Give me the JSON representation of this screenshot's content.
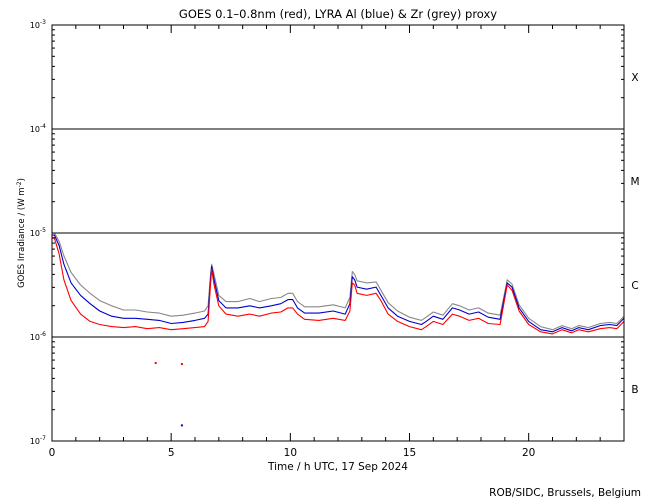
{
  "chart_data": {
    "type": "line",
    "title": "GOES 0.1–0.8nm (red), LYRA Al (blue) & Zr (grey) proxy",
    "xlabel": "Time / h UTC, 17 Sep 2024",
    "ylabel_main": "GOES Irradiance / (W m",
    "ylabel_sup": "-2",
    "ylabel_close": ")",
    "xlim": [
      0,
      24
    ],
    "ylim_log10": [
      -7,
      -3
    ],
    "yscale": "log",
    "x_ticks": [
      {
        "v": 0,
        "label": "0"
      },
      {
        "v": 5,
        "label": "5"
      },
      {
        "v": 10,
        "label": "10"
      },
      {
        "v": 15,
        "label": "15"
      },
      {
        "v": 20,
        "label": "20"
      }
    ],
    "y_ticks": [
      {
        "exp": -3,
        "base": "10",
        "sup": "-3"
      },
      {
        "exp": -4,
        "base": "10",
        "sup": "-4"
      },
      {
        "exp": -5,
        "base": "10",
        "sup": "-5"
      },
      {
        "exp": -6,
        "base": "10",
        "sup": "-6"
      },
      {
        "exp": -7,
        "base": "10",
        "sup": "-7"
      }
    ],
    "flare_class_lines_log10": [
      -4,
      -5,
      -6
    ],
    "flare_classes": [
      {
        "label": "X",
        "log10": -3.5
      },
      {
        "label": "M",
        "log10": -4.5
      },
      {
        "label": "C",
        "log10": -5.5
      },
      {
        "label": "B",
        "log10": -6.5
      }
    ],
    "series": [
      {
        "name": "GOES 0.1–0.8nm",
        "color": "#ff0000",
        "points": [
          [
            0,
            -5.05
          ],
          [
            0.1,
            -5.05
          ],
          [
            0.3,
            -5.2
          ],
          [
            0.5,
            -5.45
          ],
          [
            0.8,
            -5.65
          ],
          [
            1.2,
            -5.78
          ],
          [
            1.6,
            -5.85
          ],
          [
            2.0,
            -5.88
          ],
          [
            2.5,
            -5.9
          ],
          [
            3.0,
            -5.91
          ],
          [
            3.5,
            -5.9
          ],
          [
            4.0,
            -5.92
          ],
          [
            4.5,
            -5.91
          ],
          [
            5.0,
            -5.93
          ],
          [
            5.5,
            -5.92
          ],
          [
            6.0,
            -5.91
          ],
          [
            6.4,
            -5.9
          ],
          [
            6.55,
            -5.85
          ],
          [
            6.65,
            -5.5
          ],
          [
            6.7,
            -5.35
          ],
          [
            6.8,
            -5.5
          ],
          [
            7.0,
            -5.7
          ],
          [
            7.3,
            -5.78
          ],
          [
            7.8,
            -5.8
          ],
          [
            8.3,
            -5.78
          ],
          [
            8.7,
            -5.8
          ],
          [
            9.2,
            -5.77
          ],
          [
            9.6,
            -5.76
          ],
          [
            9.9,
            -5.72
          ],
          [
            10.1,
            -5.72
          ],
          [
            10.3,
            -5.78
          ],
          [
            10.6,
            -5.83
          ],
          [
            11.2,
            -5.84
          ],
          [
            11.8,
            -5.82
          ],
          [
            12.3,
            -5.84
          ],
          [
            12.5,
            -5.75
          ],
          [
            12.6,
            -5.48
          ],
          [
            12.7,
            -5.5
          ],
          [
            12.8,
            -5.58
          ],
          [
            13.2,
            -5.6
          ],
          [
            13.6,
            -5.58
          ],
          [
            13.8,
            -5.65
          ],
          [
            14.1,
            -5.78
          ],
          [
            14.5,
            -5.85
          ],
          [
            15.0,
            -5.9
          ],
          [
            15.5,
            -5.93
          ],
          [
            15.7,
            -5.9
          ],
          [
            16.0,
            -5.85
          ],
          [
            16.4,
            -5.88
          ],
          [
            16.8,
            -5.78
          ],
          [
            17.1,
            -5.8
          ],
          [
            17.5,
            -5.84
          ],
          [
            17.9,
            -5.82
          ],
          [
            18.3,
            -5.87
          ],
          [
            18.8,
            -5.88
          ],
          [
            19.1,
            -5.5
          ],
          [
            19.3,
            -5.55
          ],
          [
            19.6,
            -5.75
          ],
          [
            20.0,
            -5.88
          ],
          [
            20.5,
            -5.95
          ],
          [
            21.0,
            -5.97
          ],
          [
            21.4,
            -5.93
          ],
          [
            21.8,
            -5.96
          ],
          [
            22.1,
            -5.93
          ],
          [
            22.5,
            -5.95
          ],
          [
            23.0,
            -5.92
          ],
          [
            23.4,
            -5.91
          ],
          [
            23.7,
            -5.92
          ],
          [
            24.0,
            -5.85
          ]
        ]
      },
      {
        "name": "LYRA Al",
        "color": "#0000cc",
        "points": [
          [
            0,
            -5.02
          ],
          [
            0.1,
            -5.02
          ],
          [
            0.3,
            -5.12
          ],
          [
            0.5,
            -5.3
          ],
          [
            0.8,
            -5.48
          ],
          [
            1.2,
            -5.6
          ],
          [
            1.6,
            -5.68
          ],
          [
            2.0,
            -5.75
          ],
          [
            2.5,
            -5.8
          ],
          [
            3.0,
            -5.82
          ],
          [
            3.5,
            -5.82
          ],
          [
            4.0,
            -5.83
          ],
          [
            4.5,
            -5.84
          ],
          [
            5.0,
            -5.87
          ],
          [
            5.5,
            -5.86
          ],
          [
            6.0,
            -5.84
          ],
          [
            6.4,
            -5.82
          ],
          [
            6.55,
            -5.78
          ],
          [
            6.65,
            -5.45
          ],
          [
            6.7,
            -5.32
          ],
          [
            6.8,
            -5.45
          ],
          [
            7.0,
            -5.65
          ],
          [
            7.3,
            -5.72
          ],
          [
            7.8,
            -5.72
          ],
          [
            8.3,
            -5.7
          ],
          [
            8.7,
            -5.72
          ],
          [
            9.2,
            -5.7
          ],
          [
            9.6,
            -5.68
          ],
          [
            9.9,
            -5.64
          ],
          [
            10.1,
            -5.64
          ],
          [
            10.3,
            -5.72
          ],
          [
            10.6,
            -5.77
          ],
          [
            11.2,
            -5.77
          ],
          [
            11.8,
            -5.75
          ],
          [
            12.3,
            -5.78
          ],
          [
            12.5,
            -5.68
          ],
          [
            12.6,
            -5.42
          ],
          [
            12.7,
            -5.45
          ],
          [
            12.8,
            -5.52
          ],
          [
            13.2,
            -5.54
          ],
          [
            13.6,
            -5.52
          ],
          [
            13.8,
            -5.6
          ],
          [
            14.1,
            -5.72
          ],
          [
            14.5,
            -5.8
          ],
          [
            15.0,
            -5.85
          ],
          [
            15.5,
            -5.88
          ],
          [
            15.7,
            -5.85
          ],
          [
            16.0,
            -5.8
          ],
          [
            16.4,
            -5.83
          ],
          [
            16.8,
            -5.72
          ],
          [
            17.1,
            -5.74
          ],
          [
            17.5,
            -5.78
          ],
          [
            17.9,
            -5.76
          ],
          [
            18.3,
            -5.81
          ],
          [
            18.8,
            -5.83
          ],
          [
            19.1,
            -5.48
          ],
          [
            19.3,
            -5.52
          ],
          [
            19.6,
            -5.72
          ],
          [
            20.0,
            -5.85
          ],
          [
            20.5,
            -5.93
          ],
          [
            21.0,
            -5.95
          ],
          [
            21.4,
            -5.91
          ],
          [
            21.8,
            -5.94
          ],
          [
            22.1,
            -5.91
          ],
          [
            22.5,
            -5.93
          ],
          [
            23.0,
            -5.89
          ],
          [
            23.4,
            -5.88
          ],
          [
            23.7,
            -5.89
          ],
          [
            24.0,
            -5.82
          ]
        ]
      },
      {
        "name": "Zr",
        "color": "#888888",
        "points": [
          [
            0,
            -5.0
          ],
          [
            0.1,
            -5.0
          ],
          [
            0.3,
            -5.08
          ],
          [
            0.5,
            -5.22
          ],
          [
            0.8,
            -5.38
          ],
          [
            1.2,
            -5.5
          ],
          [
            1.6,
            -5.58
          ],
          [
            2.0,
            -5.65
          ],
          [
            2.5,
            -5.7
          ],
          [
            3.0,
            -5.74
          ],
          [
            3.5,
            -5.74
          ],
          [
            4.0,
            -5.76
          ],
          [
            4.5,
            -5.77
          ],
          [
            5.0,
            -5.8
          ],
          [
            5.5,
            -5.79
          ],
          [
            6.0,
            -5.77
          ],
          [
            6.4,
            -5.75
          ],
          [
            6.55,
            -5.7
          ],
          [
            6.65,
            -5.4
          ],
          [
            6.7,
            -5.3
          ],
          [
            6.8,
            -5.4
          ],
          [
            7.0,
            -5.6
          ],
          [
            7.3,
            -5.66
          ],
          [
            7.8,
            -5.66
          ],
          [
            8.3,
            -5.63
          ],
          [
            8.7,
            -5.66
          ],
          [
            9.2,
            -5.63
          ],
          [
            9.6,
            -5.62
          ],
          [
            9.9,
            -5.58
          ],
          [
            10.1,
            -5.58
          ],
          [
            10.3,
            -5.66
          ],
          [
            10.6,
            -5.71
          ],
          [
            11.2,
            -5.71
          ],
          [
            11.8,
            -5.69
          ],
          [
            12.3,
            -5.72
          ],
          [
            12.5,
            -5.62
          ],
          [
            12.6,
            -5.37
          ],
          [
            12.7,
            -5.4
          ],
          [
            12.8,
            -5.46
          ],
          [
            13.2,
            -5.48
          ],
          [
            13.6,
            -5.47
          ],
          [
            13.8,
            -5.55
          ],
          [
            14.1,
            -5.67
          ],
          [
            14.5,
            -5.75
          ],
          [
            15.0,
            -5.81
          ],
          [
            15.5,
            -5.84
          ],
          [
            15.7,
            -5.81
          ],
          [
            16.0,
            -5.76
          ],
          [
            16.4,
            -5.79
          ],
          [
            16.8,
            -5.68
          ],
          [
            17.1,
            -5.7
          ],
          [
            17.5,
            -5.74
          ],
          [
            17.9,
            -5.72
          ],
          [
            18.3,
            -5.77
          ],
          [
            18.8,
            -5.79
          ],
          [
            19.1,
            -5.45
          ],
          [
            19.3,
            -5.49
          ],
          [
            19.6,
            -5.69
          ],
          [
            20.0,
            -5.82
          ],
          [
            20.5,
            -5.9
          ],
          [
            21.0,
            -5.93
          ],
          [
            21.4,
            -5.89
          ],
          [
            21.8,
            -5.92
          ],
          [
            22.1,
            -5.89
          ],
          [
            22.5,
            -5.91
          ],
          [
            23.0,
            -5.87
          ],
          [
            23.4,
            -5.86
          ],
          [
            23.7,
            -5.87
          ],
          [
            24.0,
            -5.8
          ]
        ]
      }
    ],
    "outliers": [
      {
        "color": "#ff0000",
        "x": 4.35,
        "log10": -6.25
      },
      {
        "color": "#ff0000",
        "x": 5.45,
        "log10": -6.26
      },
      {
        "color": "#0000cc",
        "x": 5.45,
        "log10": -6.85
      }
    ],
    "credit": "ROB/SIDC, Brussels, Belgium"
  }
}
